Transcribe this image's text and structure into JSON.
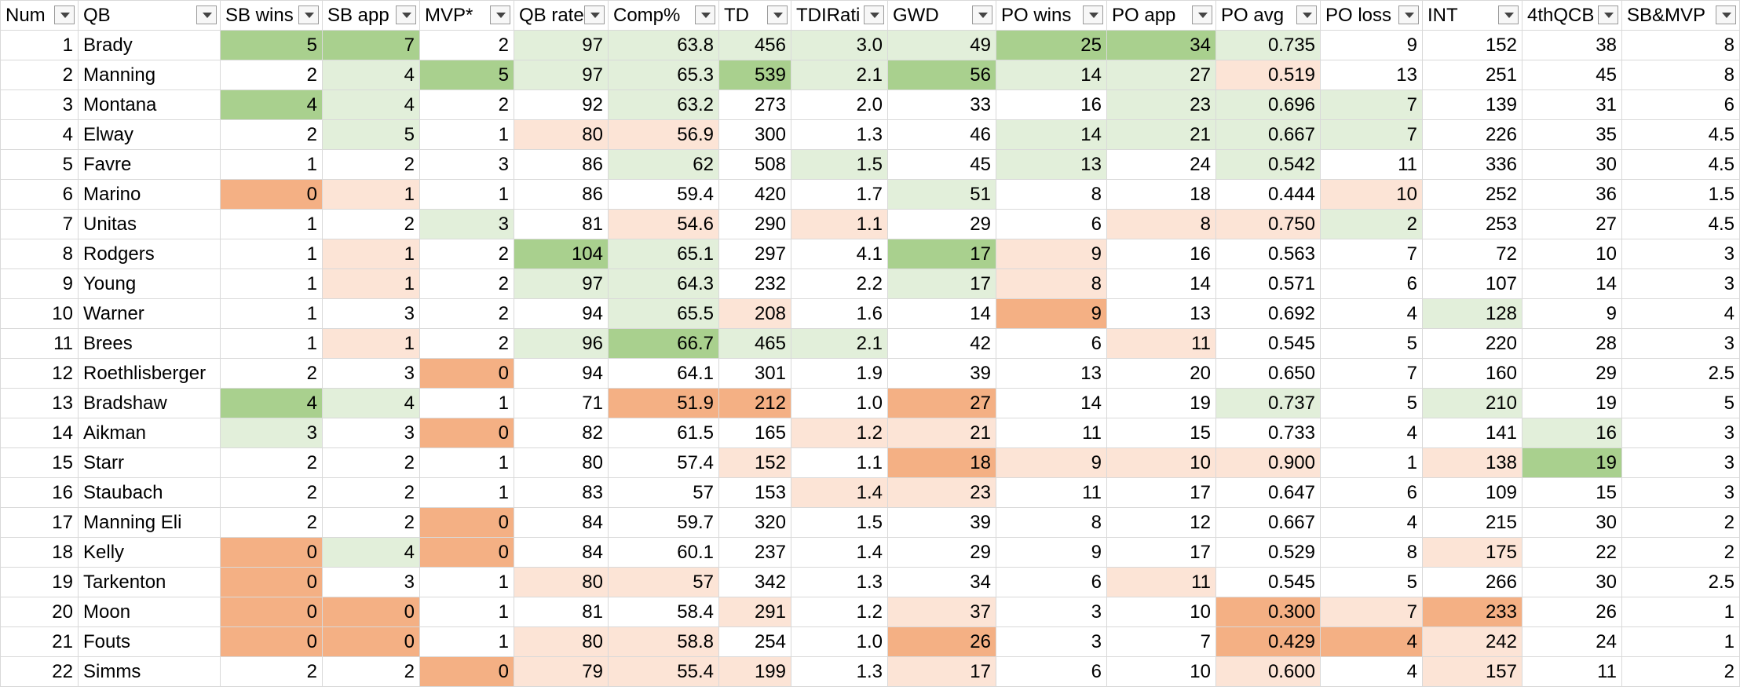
{
  "table": {
    "headers": [
      "Num",
      "QB",
      "SB wins",
      "SB app",
      "MVP*",
      "QB rate",
      "Comp%",
      "TD",
      "TDIRati",
      "GWD",
      "PO wins",
      "PO app",
      "PO avg",
      "PO loss",
      "INT",
      "4thQCB",
      "SB&MVP"
    ],
    "rows": [
      [
        "1",
        "Brady",
        "5",
        "7",
        "2",
        "97",
        "63.8",
        "456",
        "3.0",
        "49",
        "25",
        "34",
        "0.735",
        "9",
        "152",
        "38",
        "8"
      ],
      [
        "2",
        "Manning",
        "2",
        "4",
        "5",
        "97",
        "65.3",
        "539",
        "2.1",
        "56",
        "14",
        "27",
        "0.519",
        "13",
        "251",
        "45",
        "8"
      ],
      [
        "3",
        "Montana",
        "4",
        "4",
        "2",
        "92",
        "63.2",
        "273",
        "2.0",
        "33",
        "16",
        "23",
        "0.696",
        "7",
        "139",
        "31",
        "6"
      ],
      [
        "4",
        "Elway",
        "2",
        "5",
        "1",
        "80",
        "56.9",
        "300",
        "1.3",
        "46",
        "14",
        "21",
        "0.667",
        "7",
        "226",
        "35",
        "4.5"
      ],
      [
        "5",
        "Favre",
        "1",
        "2",
        "3",
        "86",
        "62",
        "508",
        "1.5",
        "45",
        "13",
        "24",
        "0.542",
        "11",
        "336",
        "30",
        "4.5"
      ],
      [
        "6",
        "Marino",
        "0",
        "1",
        "1",
        "86",
        "59.4",
        "420",
        "1.7",
        "51",
        "8",
        "18",
        "0.444",
        "10",
        "252",
        "36",
        "1.5"
      ],
      [
        "7",
        "Unitas",
        "1",
        "2",
        "3",
        "81",
        "54.6",
        "290",
        "1.1",
        "29",
        "6",
        "8",
        "0.750",
        "2",
        "253",
        "27",
        "4.5"
      ],
      [
        "8",
        "Rodgers",
        "1",
        "1",
        "2",
        "104",
        "65.1",
        "297",
        "4.1",
        "17",
        "9",
        "16",
        "0.563",
        "7",
        "72",
        "10",
        "3"
      ],
      [
        "9",
        "Young",
        "1",
        "1",
        "2",
        "97",
        "64.3",
        "232",
        "2.2",
        "17",
        "8",
        "14",
        "0.571",
        "6",
        "107",
        "14",
        "3"
      ],
      [
        "10",
        "Warner",
        "1",
        "3",
        "2",
        "94",
        "65.5",
        "208",
        "1.6",
        "14",
        "9",
        "13",
        "0.692",
        "4",
        "128",
        "9",
        "4"
      ],
      [
        "11",
        "Brees",
        "1",
        "1",
        "2",
        "96",
        "66.7",
        "465",
        "2.1",
        "42",
        "6",
        "11",
        "0.545",
        "5",
        "220",
        "28",
        "3"
      ],
      [
        "12",
        "Roethlisberger",
        "2",
        "3",
        "0",
        "94",
        "64.1",
        "301",
        "1.9",
        "39",
        "13",
        "20",
        "0.650",
        "7",
        "160",
        "29",
        "2.5"
      ],
      [
        "13",
        "Bradshaw",
        "4",
        "4",
        "1",
        "71",
        "51.9",
        "212",
        "1.0",
        "27",
        "14",
        "19",
        "0.737",
        "5",
        "210",
        "19",
        "5"
      ],
      [
        "14",
        "Aikman",
        "3",
        "3",
        "0",
        "82",
        "61.5",
        "165",
        "1.2",
        "21",
        "11",
        "15",
        "0.733",
        "4",
        "141",
        "16",
        "3"
      ],
      [
        "15",
        "Starr",
        "2",
        "2",
        "1",
        "80",
        "57.4",
        "152",
        "1.1",
        "18",
        "9",
        "10",
        "0.900",
        "1",
        "138",
        "19",
        "3"
      ],
      [
        "16",
        "Staubach",
        "2",
        "2",
        "1",
        "83",
        "57",
        "153",
        "1.4",
        "23",
        "11",
        "17",
        "0.647",
        "6",
        "109",
        "15",
        "3"
      ],
      [
        "17",
        "Manning Eli",
        "2",
        "2",
        "0",
        "84",
        "59.7",
        "320",
        "1.5",
        "39",
        "8",
        "12",
        "0.667",
        "4",
        "215",
        "30",
        "2"
      ],
      [
        "18",
        "Kelly",
        "0",
        "4",
        "0",
        "84",
        "60.1",
        "237",
        "1.4",
        "29",
        "9",
        "17",
        "0.529",
        "8",
        "175",
        "22",
        "2"
      ],
      [
        "19",
        "Tarkenton",
        "0",
        "3",
        "1",
        "80",
        "57",
        "342",
        "1.3",
        "34",
        "6",
        "11",
        "0.545",
        "5",
        "266",
        "30",
        "2.5"
      ],
      [
        "20",
        "Moon",
        "0",
        "0",
        "1",
        "81",
        "58.4",
        "291",
        "1.2",
        "37",
        "3",
        "10",
        "0.300",
        "7",
        "233",
        "26",
        "1"
      ],
      [
        "21",
        "Fouts",
        "0",
        "0",
        "1",
        "80",
        "58.8",
        "254",
        "1.0",
        "26",
        "3",
        "7",
        "0.429",
        "4",
        "242",
        "24",
        "1"
      ],
      [
        "22",
        "Simms",
        "2",
        "2",
        "0",
        "79",
        "55.4",
        "199",
        "1.3",
        "17",
        "6",
        "10",
        "0.600",
        "4",
        "157",
        "11",
        "2"
      ]
    ],
    "palette": {
      "G": "#a9d08e",
      "L": "#e2efda",
      "P": "#fce4d6",
      "O": "#f4b084"
    },
    "fills": [
      "..GG.LLLLLGGL....",
      "...LGLLGLGLLP....",
      "..GL..L....LLL...",
      "...L.PP...LLLL...",
      "......L.L.L.L....",
      "..OP.....L...P...",
      "....L.P.P..PPL...",
      "...P.GL..GP......",
      "...P.LL..LP......",
      "......LP..O...L..",
      "...P.LGLL..P.....",
      "....O............",
      "..GL..OO.O..L.L..",
      "..L.O...PP.....L.",
      ".......P.OPPP.PG.",
      "........PP.......",
      "....O............",
      "..OLO.........P..",
      "..O..PP....P.....",
      "..OO...P.P..OPO..",
      "..OO.PP..O..OOP..",
      "....OPPP.P..P.P.."
    ]
  }
}
